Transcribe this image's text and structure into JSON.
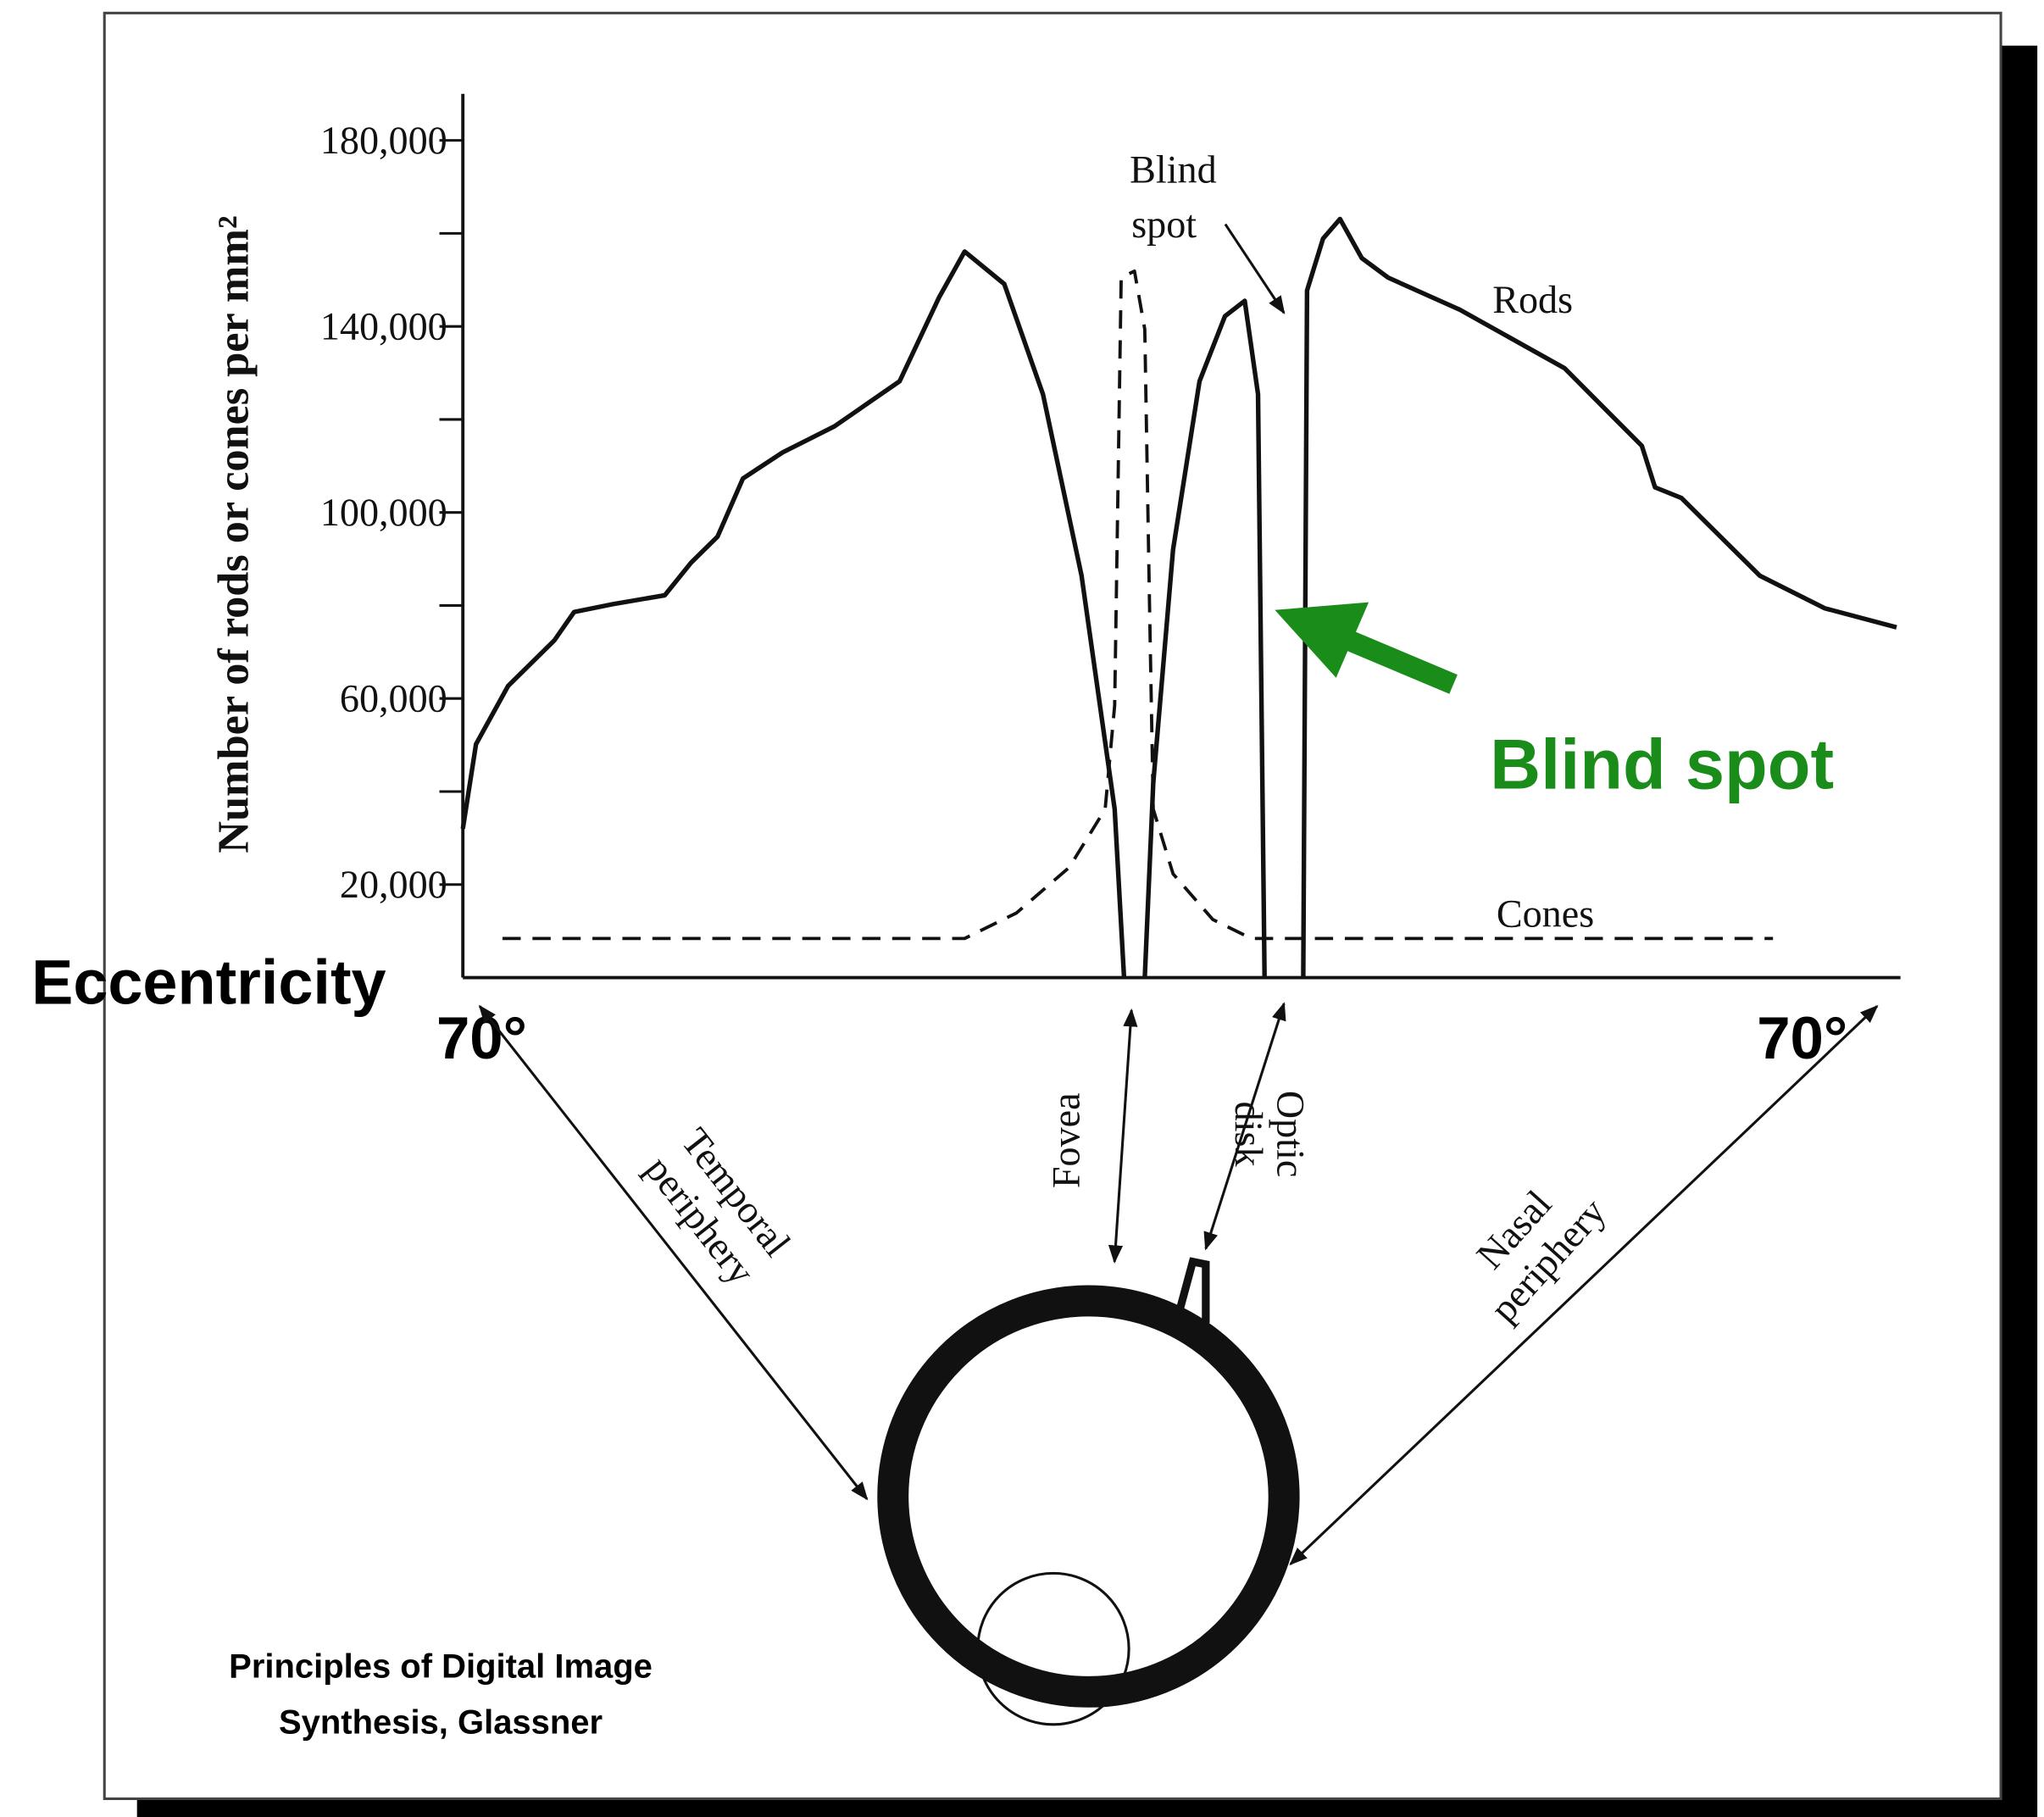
{
  "chart_data": {
    "type": "line",
    "y_label": "Number of rods or cones per mm²",
    "x_label": "Eccentricity",
    "xlim": [
      -72,
      80
    ],
    "xticks": [
      {
        "value": -70,
        "label": "70°"
      },
      {
        "value": 70,
        "label": "70°"
      }
    ],
    "ylim": [
      0,
      190000
    ],
    "yticks": [
      {
        "value": 20000,
        "label": "20,000"
      },
      {
        "value": 60000,
        "label": "60,000"
      },
      {
        "value": 100000,
        "label": "100,000"
      },
      {
        "value": 140000,
        "label": "140,000"
      },
      {
        "value": 180000,
        "label": "180,000"
      }
    ],
    "y_minor_ticks": [
      40000,
      80000,
      120000,
      160000
    ],
    "series": [
      {
        "name": "Rods",
        "color": "#111111",
        "line_style": "solid",
        "x": [
          -72,
          -70.6,
          -67.2,
          -62.3,
          -60.2,
          -56.1,
          -50.6,
          -47.8,
          -45,
          -42.3,
          -38.1,
          -32.6,
          -25.7,
          -21.5,
          -18.8,
          -14.6,
          -10.5,
          -6.4,
          -2.9,
          -1.9,
          null,
          0.3,
          1.2,
          3.3,
          6.1,
          8.8,
          10.9,
          12.3,
          13.0,
          null,
          17.1,
          17.5,
          19.2,
          21.0,
          23.3,
          26.1,
          33.7,
          44.8,
          53.0,
          54.4,
          57.2,
          65.5,
          72.4,
          80.0
        ],
        "values": [
          32000,
          50200,
          62700,
          72500,
          78600,
          80300,
          82200,
          89200,
          94800,
          107300,
          112900,
          118500,
          128200,
          146300,
          156100,
          149100,
          125400,
          86400,
          36200,
          0,
          null,
          0,
          41800,
          92000,
          128200,
          142200,
          145500,
          125400,
          0,
          null,
          0,
          147700,
          158900,
          163100,
          154700,
          150500,
          143600,
          131000,
          114300,
          105400,
          103100,
          86400,
          79400,
          75300
        ]
      },
      {
        "name": "Cones",
        "color": "#111111",
        "line_style": "dashed",
        "x": [
          -67.8,
          -18.8,
          -13.3,
          -7.7,
          -3.9,
          -2.9,
          -2.2,
          -0.8,
          0.3,
          0.8,
          1.2,
          3.3,
          7.5,
          11.6,
          66.9
        ],
        "values": [
          8400,
          8400,
          13900,
          23700,
          36200,
          58500,
          150500,
          151900,
          139400,
          80800,
          36200,
          22300,
          12500,
          8400,
          8400
        ]
      }
    ],
    "annotations": {
      "blind_spot_small": [
        "Blind",
        "spot"
      ],
      "blind_spot_big": "Blind spot",
      "temporal": [
        "Temporal",
        "periphery"
      ],
      "fovea": "Fovea",
      "optic": [
        "Optic",
        "disk"
      ],
      "nasal": [
        "Nasal",
        "periphery"
      ],
      "credit": [
        "Principles of Digital Image",
        "Synthesis, Glassner"
      ]
    }
  }
}
